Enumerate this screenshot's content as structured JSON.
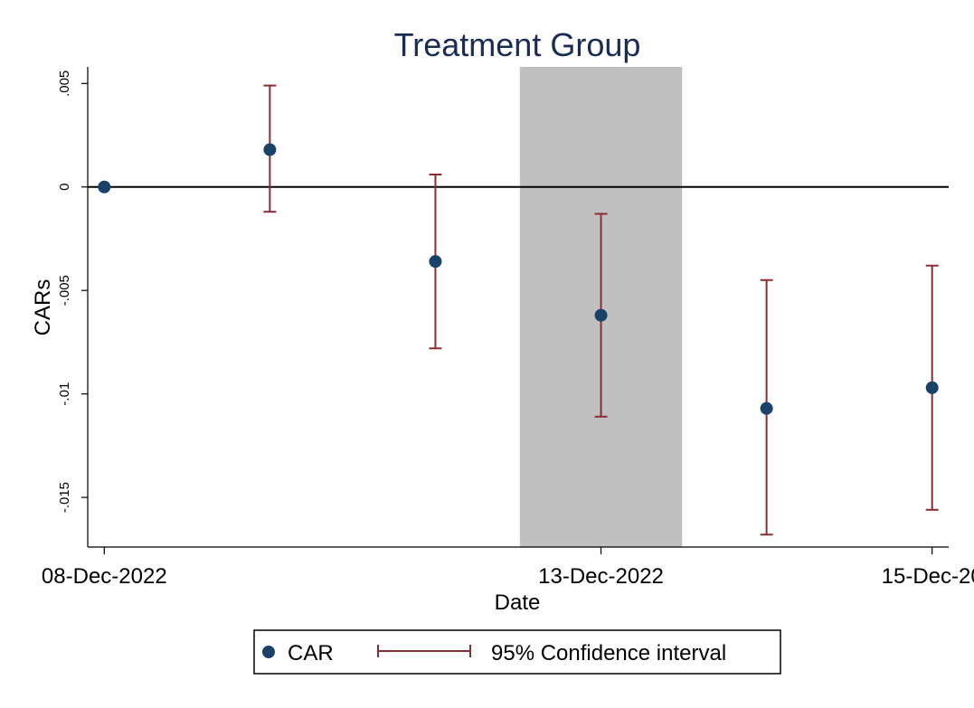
{
  "chart_data": {
    "type": "scatter",
    "title": "Treatment Group",
    "xlabel": "Date",
    "ylabel": "CARs",
    "x_ticks": [
      {
        "value": 0,
        "label": "08-Dec-2022"
      },
      {
        "value": 3,
        "label": "13-Dec-2022"
      },
      {
        "value": 5,
        "label": "15-Dec-20"
      }
    ],
    "y_ticks": [
      {
        "value": 0.005,
        "label": ".005"
      },
      {
        "value": 0,
        "label": "0"
      },
      {
        "value": -0.005,
        "label": "-.005"
      },
      {
        "value": -0.01,
        "label": "-.01"
      },
      {
        "value": -0.015,
        "label": "-.015"
      }
    ],
    "xlim": [
      -0.1,
      5.1
    ],
    "ylim": [
      -0.0174,
      0.0058
    ],
    "reference_line_y": 0,
    "shaded_region": {
      "x_start": 2.51,
      "x_end": 3.49,
      "color": "#c0c0c0"
    },
    "points": [
      {
        "x": 0,
        "car": 0.0,
        "lower": null,
        "upper": null
      },
      {
        "x": 1,
        "car": 0.0018,
        "lower": -0.0012,
        "upper": 0.0049
      },
      {
        "x": 2,
        "car": -0.0036,
        "lower": -0.0078,
        "upper": 0.0006
      },
      {
        "x": 3,
        "car": -0.0062,
        "lower": -0.0111,
        "upper": -0.0013
      },
      {
        "x": 4,
        "car": -0.0107,
        "lower": -0.0168,
        "upper": -0.0045
      },
      {
        "x": 5,
        "car": -0.0097,
        "lower": -0.0156,
        "upper": -0.0038
      }
    ],
    "legend": {
      "position": "bottom",
      "entries": [
        {
          "label": "CAR",
          "type": "marker"
        },
        {
          "label": "95% Confidence interval",
          "type": "errorbar"
        }
      ]
    },
    "colors": {
      "marker": "#1a4168",
      "errorbar": "#8a2c34",
      "title": "#1a2b54",
      "shade": "#c0c0c0"
    }
  }
}
